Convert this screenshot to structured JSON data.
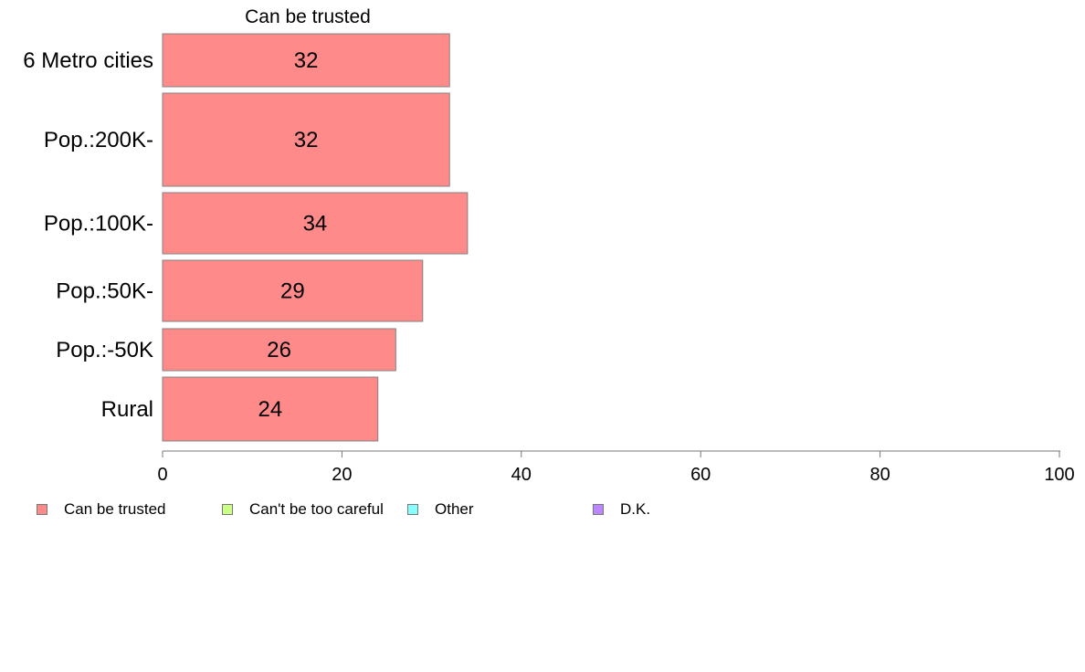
{
  "chart_data": {
    "type": "bar",
    "orientation": "horizontal",
    "title": "Can be trusted",
    "categories": [
      "6 Metro cities",
      "Pop.:200K-",
      "Pop.:100K-",
      "Pop.:50K-",
      "Pop.:-50K",
      "Rural"
    ],
    "series": [
      {
        "name": "Can be trusted",
        "values": [
          32,
          32,
          34,
          29,
          26,
          24
        ],
        "color": "#ff8a8a"
      }
    ],
    "data_labels": [
      "32",
      "32",
      "34",
      "29",
      "26",
      "24"
    ],
    "xlim": [
      0,
      100
    ],
    "x_ticks": [
      "0",
      "20",
      "40",
      "60",
      "80",
      "100"
    ],
    "grid": false,
    "legend_position": "bottom"
  },
  "legend": [
    {
      "label": "Can be trusted",
      "color": "#ff8a8a"
    },
    {
      "label": "Can't be too careful",
      "color": "#ccff88"
    },
    {
      "label": "Other",
      "color": "#88ffff"
    },
    {
      "label": "D.K.",
      "color": "#bb88ff"
    }
  ]
}
